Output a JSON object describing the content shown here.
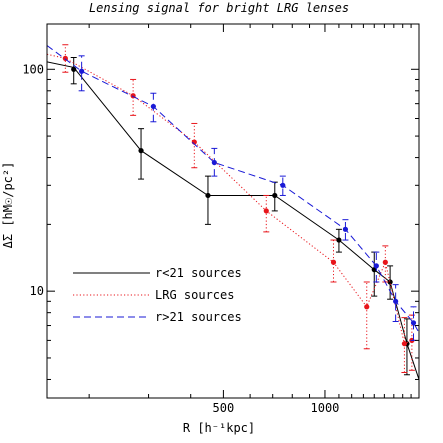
{
  "chart_data": {
    "type": "line",
    "title": "Lensing signal for bright LRG lenses",
    "xlabel": "R [h⁻¹kpc]",
    "ylabel": "ΔΣ [hM☉/pc²]",
    "xscale": "log",
    "yscale": "log",
    "xlim": [
      150,
      1900
    ],
    "ylim": [
      3.3,
      160
    ],
    "x_ticks": [
      500,
      1000
    ],
    "x_tick_labels": [
      "500",
      "1000"
    ],
    "y_ticks": [
      10,
      100
    ],
    "y_tick_labels": [
      "10",
      "100"
    ],
    "legend_position": "lower-left",
    "series": [
      {
        "name": "r<21 sources",
        "color": "#000000",
        "dash": "solid",
        "line_x": [
          150,
          180,
          285,
          450,
          710,
          1100,
          1400,
          1560,
          1750,
          1900
        ],
        "line_y": [
          108,
          102,
          43,
          27,
          27,
          17,
          12.5,
          11,
          5.8,
          4.0
        ],
        "points": [
          {
            "x": 180,
            "y": 100,
            "lo": 86,
            "hi": 113
          },
          {
            "x": 285,
            "y": 43,
            "lo": 32,
            "hi": 54
          },
          {
            "x": 450,
            "y": 27,
            "lo": 20,
            "hi": 33
          },
          {
            "x": 710,
            "y": 27,
            "lo": 23,
            "hi": 31
          },
          {
            "x": 1100,
            "y": 17,
            "lo": 15,
            "hi": 19
          },
          {
            "x": 1400,
            "y": 12.5,
            "lo": 9.5,
            "hi": 15
          },
          {
            "x": 1560,
            "y": 11,
            "lo": 9.2,
            "hi": 13
          },
          {
            "x": 1750,
            "y": 5.8,
            "lo": 4.2,
            "hi": 7.5
          }
        ]
      },
      {
        "name": "LRG sources",
        "color": "#e8151b",
        "dash": "dotted",
        "line_x": [
          150,
          170,
          270,
          410,
          670,
          1060,
          1330,
          1510,
          1720,
          1810
        ],
        "line_y": [
          117,
          112,
          76,
          47,
          23,
          13.5,
          8.5,
          13.5,
          5.8,
          6.0
        ],
        "points": [
          {
            "x": 170,
            "y": 112,
            "lo": 97,
            "hi": 129
          },
          {
            "x": 270,
            "y": 76,
            "lo": 62,
            "hi": 90
          },
          {
            "x": 410,
            "y": 47,
            "lo": 36,
            "hi": 57
          },
          {
            "x": 670,
            "y": 23,
            "lo": 18.5,
            "hi": 27
          },
          {
            "x": 1060,
            "y": 13.5,
            "lo": 11,
            "hi": 17
          },
          {
            "x": 1330,
            "y": 8.5,
            "lo": 5.5,
            "hi": 11
          },
          {
            "x": 1510,
            "y": 13.5,
            "lo": 11,
            "hi": 16
          },
          {
            "x": 1720,
            "y": 5.8,
            "lo": 4.3,
            "hi": 7.6
          },
          {
            "x": 1810,
            "y": 6.0,
            "lo": 4.4,
            "hi": 7.8
          }
        ]
      },
      {
        "name": "r>21 sources",
        "color": "#1a1ad6",
        "dash": "dashed",
        "line_x": [
          150,
          190,
          310,
          470,
          750,
          1150,
          1420,
          1620,
          1830,
          1900
        ],
        "line_y": [
          128,
          98,
          68,
          38,
          30,
          19,
          13,
          9,
          7.2,
          6.5
        ],
        "points": [
          {
            "x": 190,
            "y": 98,
            "lo": 80,
            "hi": 115
          },
          {
            "x": 310,
            "y": 68,
            "lo": 58,
            "hi": 78
          },
          {
            "x": 470,
            "y": 38,
            "lo": 33,
            "hi": 44
          },
          {
            "x": 750,
            "y": 30,
            "lo": 27,
            "hi": 33
          },
          {
            "x": 1150,
            "y": 19,
            "lo": 17,
            "hi": 21
          },
          {
            "x": 1420,
            "y": 13,
            "lo": 11,
            "hi": 15
          },
          {
            "x": 1620,
            "y": 9,
            "lo": 7.3,
            "hi": 10.7
          },
          {
            "x": 1830,
            "y": 7.2,
            "lo": 6.0,
            "hi": 8.5
          }
        ]
      }
    ]
  }
}
